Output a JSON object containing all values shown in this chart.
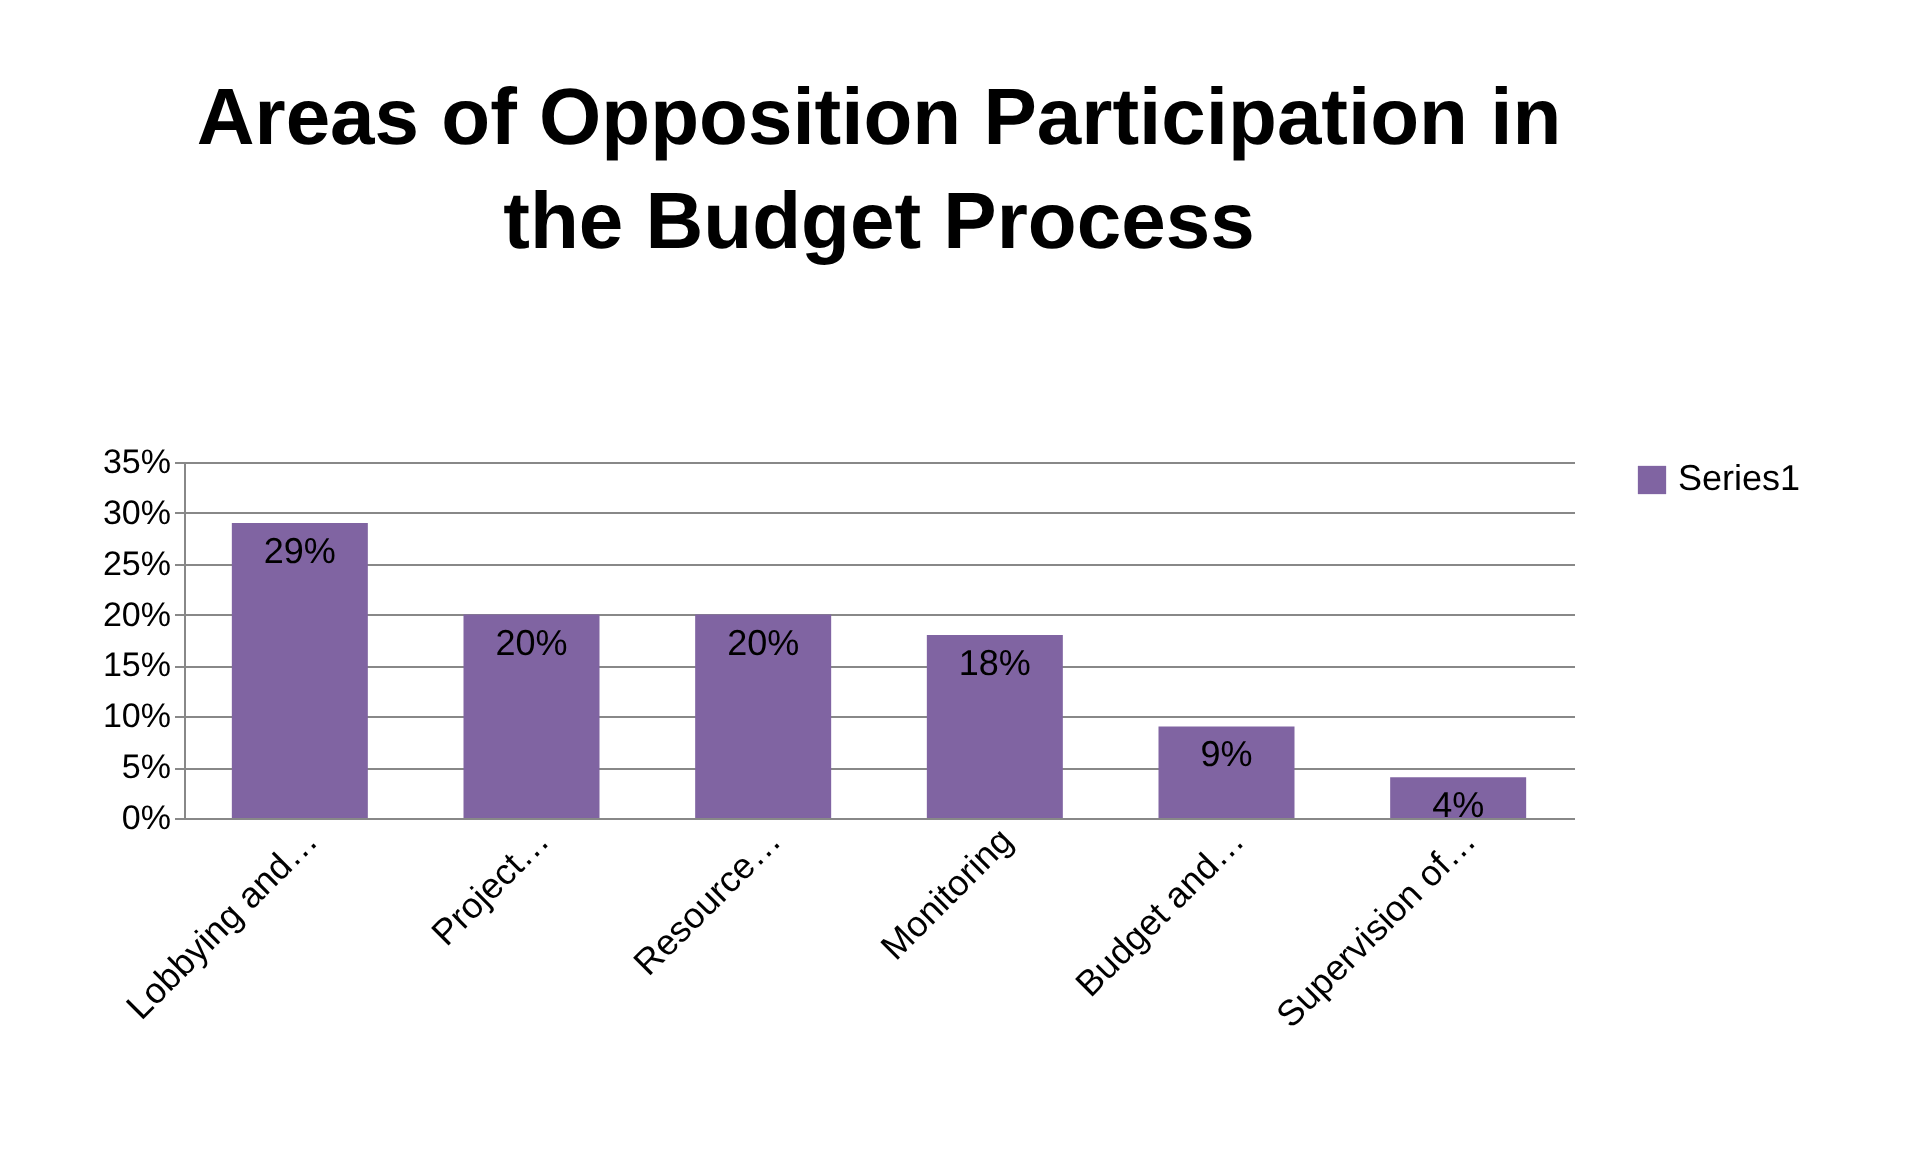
{
  "chart_data": {
    "type": "bar",
    "title": "Areas of Opposition Participation in the Budget Process",
    "categories": [
      "Lobbying and…",
      "Project…",
      "Resource…",
      "Monitoring",
      "Budget and…",
      "Supervision of…"
    ],
    "series": [
      {
        "name": "Series1",
        "color": "#8064a2",
        "values": [
          29,
          20,
          20,
          18,
          9,
          4
        ],
        "value_labels": [
          "29%",
          "20%",
          "20%",
          "18%",
          "9%",
          "4%"
        ]
      }
    ],
    "ylim": [
      0,
      35
    ],
    "yticks": [
      {
        "value": 0,
        "label": "0%"
      },
      {
        "value": 5,
        "label": "5%"
      },
      {
        "value": 10,
        "label": "10%"
      },
      {
        "value": 15,
        "label": "15%"
      },
      {
        "value": 20,
        "label": "20%"
      },
      {
        "value": 25,
        "label": "25%"
      },
      {
        "value": 30,
        "label": "30%"
      },
      {
        "value": 35,
        "label": "35%"
      }
    ],
    "grid": "y",
    "legend": "right"
  }
}
